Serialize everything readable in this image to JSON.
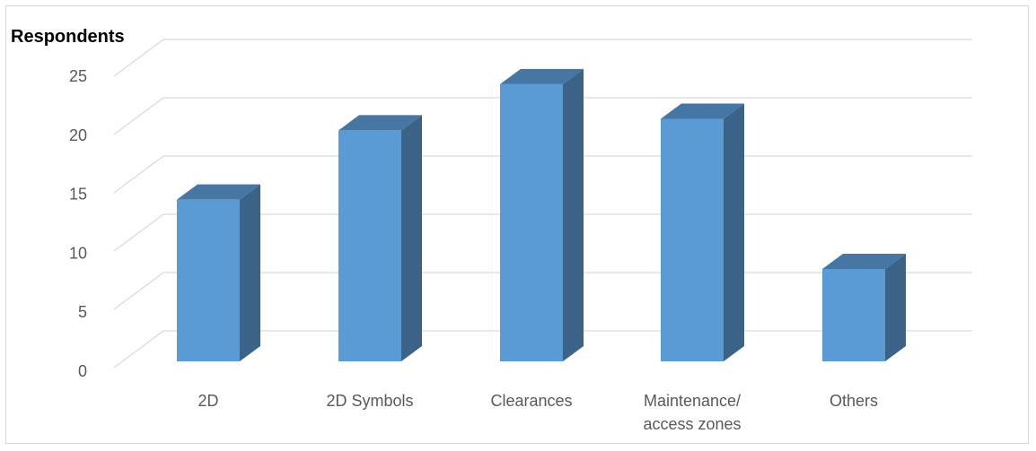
{
  "chart_data": {
    "type": "bar",
    "style": "3d-column",
    "title": "",
    "ylabel": "Respondents",
    "xlabel": "",
    "categories": [
      "2D",
      "2D Symbols",
      "Clearances",
      "Maintenance/ access zones",
      "Others"
    ],
    "category_lines": [
      [
        "2D"
      ],
      [
        "2D Symbols"
      ],
      [
        "Clearances"
      ],
      [
        "Maintenance/",
        "access zones"
      ],
      [
        "Others"
      ]
    ],
    "values": [
      14,
      20,
      24,
      21,
      8
    ],
    "ylim": [
      0,
      25
    ],
    "yticks": [
      0,
      5,
      10,
      15,
      20,
      25
    ],
    "grid": true,
    "legend": "none",
    "colors": {
      "front": "#5b9bd5",
      "side": "#3a6387",
      "top": "#4677a4",
      "grid": "#d9d9d9",
      "text": "#595959"
    }
  }
}
